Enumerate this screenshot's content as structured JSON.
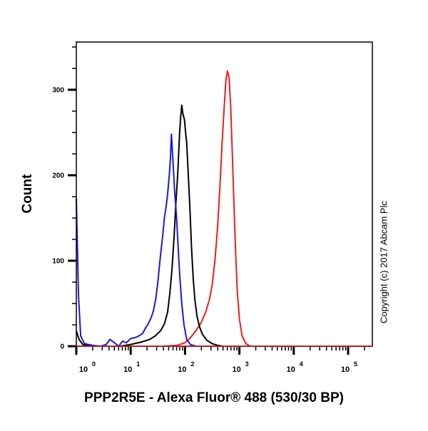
{
  "chart_data": {
    "type": "line",
    "title": "",
    "xlabel": "PPP2R5E - Alexa Fluor® 488 (530/30 BP)",
    "ylabel": "Count",
    "xscale": "log",
    "xlim": [
      1,
      250000
    ],
    "ylim": [
      0,
      355
    ],
    "x_ticks": [
      {
        "exp": "0",
        "value": 1
      },
      {
        "exp": "1",
        "value": 10
      },
      {
        "exp": "2",
        "value": 100
      },
      {
        "exp": "3",
        "value": 1000
      },
      {
        "exp": "4",
        "value": 10000
      },
      {
        "exp": "5",
        "value": 100000
      }
    ],
    "y_ticks": [
      0,
      100,
      200,
      300
    ],
    "y_minor_step": 25,
    "grid": false,
    "legend": null,
    "annotation": "Copyright (c) 2017 Abcam Plc",
    "series": [
      {
        "name": "blue",
        "color": "#1a1ad6",
        "points_log10x_count": [
          [
            0.0,
            173
          ],
          [
            0.04,
            60
          ],
          [
            0.08,
            12
          ],
          [
            0.15,
            3
          ],
          [
            0.3,
            1
          ],
          [
            0.45,
            0
          ],
          [
            0.55,
            2
          ],
          [
            0.62,
            8
          ],
          [
            0.7,
            4
          ],
          [
            0.78,
            0
          ],
          [
            0.85,
            6
          ],
          [
            0.92,
            4
          ],
          [
            1.0,
            9
          ],
          [
            1.08,
            10
          ],
          [
            1.15,
            12
          ],
          [
            1.22,
            15
          ],
          [
            1.28,
            22
          ],
          [
            1.33,
            27
          ],
          [
            1.38,
            34
          ],
          [
            1.42,
            42
          ],
          [
            1.46,
            55
          ],
          [
            1.5,
            75
          ],
          [
            1.53,
            95
          ],
          [
            1.56,
            113
          ],
          [
            1.59,
            130
          ],
          [
            1.62,
            150
          ],
          [
            1.65,
            162
          ],
          [
            1.68,
            178
          ],
          [
            1.71,
            200
          ],
          [
            1.73,
            218
          ],
          [
            1.75,
            248
          ],
          [
            1.78,
            215
          ],
          [
            1.81,
            180
          ],
          [
            1.84,
            155
          ],
          [
            1.87,
            120
          ],
          [
            1.9,
            85
          ],
          [
            1.94,
            50
          ],
          [
            1.98,
            25
          ],
          [
            2.03,
            8
          ],
          [
            2.1,
            2
          ],
          [
            2.2,
            0
          ],
          [
            5.4,
            0
          ]
        ]
      },
      {
        "name": "black",
        "color": "#000000",
        "points_log10x_count": [
          [
            0.0,
            18
          ],
          [
            0.05,
            8
          ],
          [
            0.12,
            2
          ],
          [
            0.3,
            0
          ],
          [
            0.8,
            0
          ],
          [
            1.0,
            2
          ],
          [
            1.2,
            5
          ],
          [
            1.35,
            8
          ],
          [
            1.45,
            12
          ],
          [
            1.55,
            18
          ],
          [
            1.62,
            26
          ],
          [
            1.68,
            40
          ],
          [
            1.72,
            62
          ],
          [
            1.76,
            90
          ],
          [
            1.8,
            130
          ],
          [
            1.83,
            165
          ],
          [
            1.86,
            195
          ],
          [
            1.88,
            222
          ],
          [
            1.9,
            250
          ],
          [
            1.92,
            268
          ],
          [
            1.94,
            282
          ],
          [
            1.96,
            272
          ],
          [
            1.99,
            265
          ],
          [
            2.01,
            250
          ],
          [
            2.03,
            238
          ],
          [
            2.06,
            200
          ],
          [
            2.09,
            160
          ],
          [
            2.12,
            115
          ],
          [
            2.15,
            80
          ],
          [
            2.18,
            55
          ],
          [
            2.22,
            35
          ],
          [
            2.27,
            22
          ],
          [
            2.32,
            14
          ],
          [
            2.4,
            7
          ],
          [
            2.5,
            3
          ],
          [
            2.6,
            1
          ],
          [
            2.7,
            0
          ],
          [
            5.4,
            0
          ]
        ]
      },
      {
        "name": "red",
        "color": "#ee1c1c",
        "points_log10x_count": [
          [
            0.0,
            0
          ],
          [
            1.6,
            0
          ],
          [
            1.85,
            1
          ],
          [
            2.0,
            4
          ],
          [
            2.1,
            10
          ],
          [
            2.2,
            18
          ],
          [
            2.3,
            28
          ],
          [
            2.38,
            40
          ],
          [
            2.45,
            55
          ],
          [
            2.5,
            72
          ],
          [
            2.55,
            100
          ],
          [
            2.6,
            140
          ],
          [
            2.64,
            185
          ],
          [
            2.68,
            235
          ],
          [
            2.72,
            280
          ],
          [
            2.75,
            310
          ],
          [
            2.78,
            322
          ],
          [
            2.81,
            315
          ],
          [
            2.84,
            280
          ],
          [
            2.87,
            225
          ],
          [
            2.9,
            165
          ],
          [
            2.93,
            110
          ],
          [
            2.96,
            65
          ],
          [
            3.0,
            32
          ],
          [
            3.05,
            12
          ],
          [
            3.12,
            3
          ],
          [
            3.2,
            0
          ],
          [
            5.4,
            0
          ]
        ]
      }
    ],
    "peaks": {
      "blue": 248,
      "black": 282,
      "red": 322
    }
  }
}
